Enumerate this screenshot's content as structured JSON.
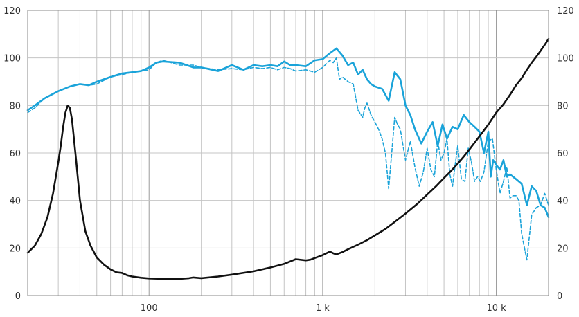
{
  "chart_data": {
    "type": "line",
    "title": "",
    "xlabel": "",
    "ylabel": "",
    "x_scale": "log",
    "xlim": [
      20,
      20000
    ],
    "ylim": [
      0,
      120
    ],
    "grid": true,
    "legend": "none",
    "x_tick_labels": [
      {
        "value": 100,
        "label": "100"
      },
      {
        "value": 1000,
        "label": "1 k"
      },
      {
        "value": 10000,
        "label": "10 k"
      }
    ],
    "y_tick_labels": [
      "0",
      "20",
      "40",
      "60",
      "80",
      "100",
      "120"
    ],
    "y_ticks": [
      0,
      20,
      40,
      60,
      80,
      100,
      120
    ],
    "series": [
      {
        "color": "#1aa3d9",
        "dash": "solid",
        "x": [
          20,
          22,
          25,
          30,
          35,
          40,
          45,
          50,
          60,
          70,
          80,
          90,
          100,
          110,
          120,
          150,
          180,
          200,
          250,
          300,
          350,
          400,
          450,
          500,
          550,
          600,
          650,
          700,
          800,
          900,
          1000,
          1100,
          1200,
          1300,
          1400,
          1500,
          1600,
          1700,
          1800,
          1900,
          2000,
          2200,
          2400,
          2600,
          2800,
          3000,
          3200,
          3400,
          3700,
          4000,
          4300,
          4600,
          4900,
          5200,
          5600,
          6000,
          6500,
          7000,
          7500,
          8000,
          8500,
          9000,
          9300,
          9600,
          10000,
          10500,
          11000,
          11500,
          12000,
          13000,
          14000,
          15000,
          16000,
          17000,
          18000,
          19000,
          20000
        ],
        "y": [
          78,
          80,
          83,
          86,
          88,
          89,
          88.5,
          90,
          92,
          93.5,
          94,
          94.5,
          96,
          98,
          98.5,
          98,
          96,
          96,
          94.5,
          97,
          95,
          97,
          96.5,
          97,
          96.5,
          98.5,
          97,
          97,
          96.5,
          99,
          99.5,
          102,
          104,
          101,
          97,
          98,
          93,
          95,
          91,
          89,
          88,
          87,
          82,
          94,
          91,
          80,
          76,
          70,
          64,
          69,
          73,
          63,
          72,
          66,
          71,
          70,
          76,
          73,
          71,
          69,
          60,
          69,
          50,
          57,
          55,
          53,
          57,
          50,
          51,
          49,
          47,
          38,
          46,
          44,
          38,
          37,
          33
        ]
      },
      {
        "color": "#1aa3d9",
        "dash": "dashed",
        "x": [
          20,
          22,
          25,
          30,
          35,
          40,
          45,
          50,
          60,
          70,
          80,
          90,
          100,
          110,
          120,
          150,
          180,
          200,
          250,
          300,
          350,
          400,
          450,
          500,
          550,
          600,
          650,
          700,
          800,
          900,
          1000,
          1100,
          1150,
          1200,
          1250,
          1300,
          1400,
          1500,
          1600,
          1700,
          1750,
          1800,
          1900,
          2000,
          2100,
          2200,
          2300,
          2400,
          2500,
          2600,
          2700,
          2800,
          3000,
          3200,
          3400,
          3600,
          3800,
          4000,
          4200,
          4400,
          4600,
          4800,
          5000,
          5200,
          5400,
          5600,
          5800,
          6000,
          6300,
          6600,
          6900,
          7200,
          7500,
          7800,
          8100,
          8500,
          9000,
          9500,
          10000,
          10500,
          11000,
          11500,
          12000,
          12500,
          13000,
          13500,
          14000,
          15000,
          16000,
          17000,
          18000,
          19000,
          20000
        ],
        "y": [
          77,
          79,
          83,
          86,
          88,
          89,
          88.5,
          89,
          92,
          93,
          94,
          94.5,
          95,
          98,
          99,
          97,
          97,
          96,
          95,
          95.5,
          95,
          96,
          95.5,
          96,
          95,
          96,
          95.5,
          94.5,
          95,
          94,
          96,
          99,
          98,
          100,
          91,
          92,
          90,
          89,
          78,
          75,
          79,
          81,
          76,
          73,
          70,
          66,
          60,
          45,
          60,
          75,
          72,
          70,
          57,
          65,
          54,
          46,
          52,
          62,
          53,
          50,
          65,
          57,
          60,
          66,
          51,
          46,
          55,
          63,
          49,
          48,
          62,
          56,
          48,
          50,
          48,
          52,
          65,
          66,
          53,
          43,
          48,
          54,
          41,
          42,
          42,
          40,
          26,
          15,
          34,
          37,
          38,
          43,
          38
        ]
      },
      {
        "color": "#111111",
        "dash": "solid",
        "x": [
          20,
          22,
          24,
          26,
          28,
          30,
          31,
          32,
          33,
          34,
          35,
          36,
          38,
          40,
          43,
          46,
          50,
          55,
          60,
          65,
          70,
          75,
          80,
          90,
          100,
          120,
          150,
          170,
          180,
          200,
          250,
          300,
          400,
          500,
          600,
          700,
          800,
          850,
          900,
          1000,
          1100,
          1150,
          1200,
          1300,
          1400,
          1600,
          1800,
          2000,
          2300,
          2600,
          3000,
          3500,
          4000,
          4500,
          5000,
          5500,
          6000,
          6500,
          7000,
          8000,
          9000,
          10000,
          11000,
          12000,
          13000,
          14000,
          15000,
          16000,
          17000,
          18000,
          19000,
          20000
        ],
        "y": [
          18,
          21,
          26,
          33,
          43,
          56,
          63,
          71,
          77,
          80,
          79,
          74,
          57,
          40,
          27,
          21,
          16,
          13,
          11,
          9.8,
          9.5,
          8.5,
          8,
          7.5,
          7.2,
          7,
          7,
          7.3,
          7.6,
          7.3,
          8,
          8.8,
          10.2,
          11.8,
          13.3,
          15.3,
          14.8,
          15.1,
          15.8,
          17,
          18.5,
          17.8,
          17.3,
          18.3,
          19.5,
          21.4,
          23.3,
          25.3,
          28,
          31,
          34.5,
          38.5,
          42.5,
          46,
          49.5,
          52.5,
          55.5,
          58.5,
          61.5,
          67,
          72,
          77,
          80.5,
          84.5,
          88.5,
          91.5,
          95,
          98,
          100.5,
          103,
          105.5,
          108
        ]
      }
    ]
  }
}
